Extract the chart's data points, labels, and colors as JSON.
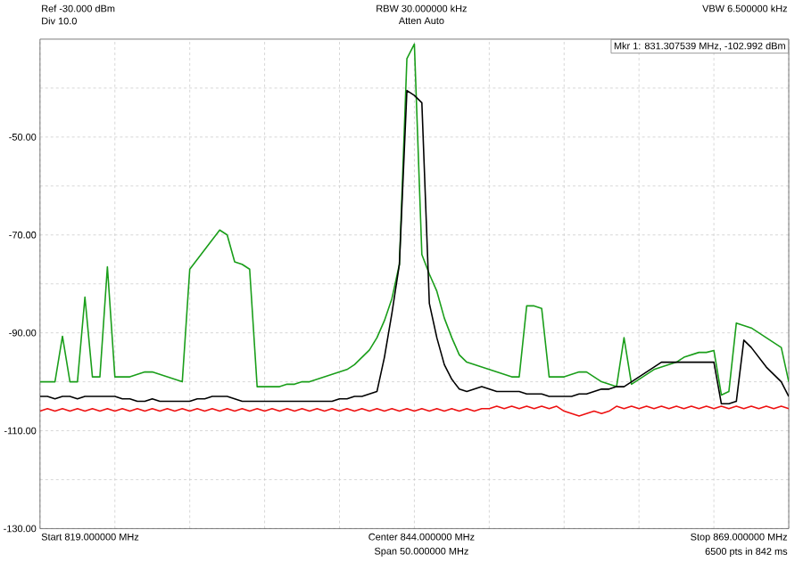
{
  "chart_data": {
    "type": "line",
    "categories": [
      null,
      null,
      null,
      null,
      null,
      null,
      null,
      null,
      null,
      null,
      null,
      null,
      null,
      null,
      null,
      null,
      null,
      null,
      null,
      null,
      null,
      null,
      null,
      null,
      null,
      null,
      null,
      null,
      null,
      null,
      null,
      null,
      null,
      null,
      null,
      null,
      null,
      null,
      null,
      null,
      null,
      null,
      null,
      null,
      null,
      null,
      null,
      null,
      null,
      null,
      null,
      null,
      null,
      null,
      null,
      null,
      null,
      null,
      null,
      null,
      null,
      null,
      null,
      null,
      null,
      null,
      null,
      null,
      null,
      null,
      null,
      null,
      null,
      null,
      null,
      null,
      null,
      null,
      null,
      null,
      null,
      null,
      null,
      null,
      null,
      null,
      null,
      null,
      null,
      null,
      null,
      null,
      null,
      null,
      null,
      null,
      null,
      null,
      null,
      null,
      null
    ],
    "ylim": [
      -130,
      -30
    ],
    "yticks": [
      {
        "value": -40,
        "label": null
      },
      {
        "value": -50,
        "label": "-50.00"
      },
      {
        "value": -60,
        "label": null
      },
      {
        "value": -70,
        "label": "-70.00"
      },
      {
        "value": -80,
        "label": null
      },
      {
        "value": -90,
        "label": "-90.00"
      },
      {
        "value": -100,
        "label": null
      },
      {
        "value": -110,
        "label": "-110.00"
      },
      {
        "value": -120,
        "label": null
      },
      {
        "value": -130,
        "label": "-130.00"
      }
    ],
    "grid": true,
    "marker": "none",
    "line_style": "solid",
    "series": [
      {
        "color": "#1a9e1a",
        "values": [
          -100,
          -100,
          -100,
          -90.7,
          -100,
          -100,
          -82.7,
          -99,
          -99,
          -76.5,
          -99,
          -99,
          -99,
          -98.5,
          -98,
          -98,
          -98.5,
          -99,
          -99.5,
          -100,
          -77,
          -75,
          -73,
          -71,
          -69,
          -70,
          -75.5,
          -76,
          -77,
          -101,
          -101,
          -101,
          -101,
          -100.5,
          -100.5,
          -100,
          -100,
          -99.5,
          -99,
          -98.5,
          -98,
          -97.5,
          -96.5,
          -95,
          -93.5,
          -91,
          -87.5,
          -83,
          -76,
          -34,
          -31,
          -74,
          -78,
          -81.5,
          -87,
          -91,
          -94.5,
          -96,
          -96.5,
          -97,
          -97.5,
          -98,
          -98.5,
          -99,
          -99,
          -84.5,
          -84.5,
          -85,
          -99,
          -99,
          -99,
          -98.5,
          -98,
          -98,
          -99,
          -100,
          -100.5,
          -101,
          -91,
          -100.5,
          -99.5,
          -98.5,
          -97.5,
          -97,
          -96.5,
          -96,
          -95,
          -94.5,
          -94,
          -94,
          -93.6,
          -102.7,
          -102,
          -88,
          -88.5,
          -89,
          -90,
          -91,
          -92,
          -93,
          -100
        ]
      },
      {
        "color": "#000000",
        "values": [
          -103,
          -103,
          -103.5,
          -103,
          -103,
          -103.5,
          -103,
          -103,
          -103,
          -103,
          -103,
          -103.5,
          -103.5,
          -104,
          -104,
          -103.5,
          -104,
          -104,
          -104,
          -104,
          -104,
          -103.5,
          -103.5,
          -103,
          -103,
          -103,
          -103.5,
          -104,
          -104,
          -104,
          -104,
          -104,
          -104,
          -104,
          -104,
          -104,
          -104,
          -104,
          -104,
          -104,
          -103.5,
          -103.5,
          -103,
          -103,
          -102.5,
          -102,
          -95,
          -86,
          -76,
          -40.5,
          -41.5,
          -43,
          -84,
          -91,
          -96.5,
          -99.5,
          -101.5,
          -102,
          -101.5,
          -101,
          -101.5,
          -102,
          -102,
          -102,
          -102,
          -102.5,
          -102.5,
          -102.5,
          -103,
          -103,
          -103,
          -103,
          -102.5,
          -102.5,
          -102,
          -101.5,
          -101.5,
          -101,
          -101,
          -100,
          -99,
          -98,
          -97,
          -96,
          -96,
          -96,
          -96,
          -96,
          -96,
          -96,
          -96,
          -104.5,
          -104.5,
          -104,
          -91.5,
          -93,
          -95,
          -97,
          -98.5,
          -100,
          -103
        ]
      },
      {
        "color": "#ee1111",
        "values": [
          -106,
          -105.5,
          -106,
          -105.5,
          -106,
          -105.5,
          -106,
          -105.5,
          -106,
          -105.5,
          -106,
          -105.5,
          -106,
          -105.5,
          -106,
          -105.5,
          -106,
          -105.5,
          -106,
          -105.5,
          -106,
          -105.5,
          -106,
          -105.5,
          -106,
          -105.5,
          -106,
          -105.5,
          -106,
          -105.5,
          -106,
          -105.5,
          -106,
          -105.5,
          -106,
          -105.5,
          -106,
          -105.5,
          -106,
          -105.5,
          -106,
          -105.5,
          -106,
          -105.5,
          -106,
          -105.5,
          -106,
          -105.5,
          -106,
          -105.5,
          -106,
          -105.5,
          -106,
          -105.5,
          -106,
          -105.5,
          -106,
          -105.5,
          -106,
          -105.5,
          -105.5,
          -105,
          -105.5,
          -105,
          -105.5,
          -105,
          -105.5,
          -105,
          -105.5,
          -105,
          -106,
          -106.5,
          -107,
          -106.5,
          -106,
          -106.5,
          -106,
          -105,
          -105.5,
          -105,
          -105.5,
          -105,
          -105.5,
          -105,
          -105.5,
          -105,
          -105.5,
          -105,
          -105.5,
          -105,
          -105.5,
          -105,
          -105.5,
          -105,
          -105.5,
          -105,
          -105.5,
          -105,
          -105.5,
          -105,
          -105.5
        ]
      }
    ],
    "annotations": [
      "Ref -30.000 dBm",
      "Div 10.0",
      "RBW 30.000000 kHz",
      "Atten Auto",
      "VBW 6.500000 kHz",
      "Mkr 1: 831.307539 MHz, -102.992 dBm",
      "Start 819.000000 MHz",
      "Center 844.000000 MHz",
      "Span 50.000000 MHz",
      "Stop 869.000000 MHz",
      "6500 pts in 842 ms"
    ]
  }
}
